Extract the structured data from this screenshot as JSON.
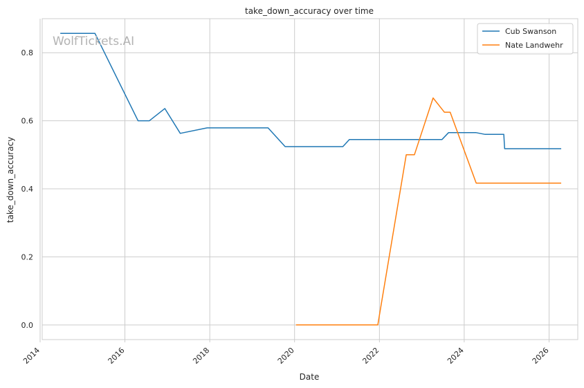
{
  "chart_data": {
    "type": "line",
    "title": "take_down_accuracy over time",
    "xlabel": "Date",
    "ylabel": "take_down_accuracy",
    "watermark": "WolfTickets.AI",
    "x_ticks": [
      "2014",
      "2016",
      "2018",
      "2020",
      "2022",
      "2024",
      "2026"
    ],
    "y_ticks": [
      "0.0",
      "0.2",
      "0.4",
      "0.6",
      "0.8"
    ],
    "xlim": [
      "2014-01-19",
      "2026-09-05"
    ],
    "ylim": [
      -0.043,
      0.9
    ],
    "grid": true,
    "legend_position": "top-right",
    "series": [
      {
        "name": "Cub Swanson",
        "color": "#1f77b4",
        "points": [
          [
            "2014-06-28",
            0.857
          ],
          [
            "2015-04-18",
            0.857
          ],
          [
            "2016-04-23",
            0.6
          ],
          [
            "2016-07-30",
            0.6
          ],
          [
            "2016-12-10",
            0.636
          ],
          [
            "2017-04-22",
            0.563
          ],
          [
            "2017-12-09",
            0.579
          ],
          [
            "2019-05-18",
            0.579
          ],
          [
            "2019-10-12",
            0.524
          ],
          [
            "2021-02-20",
            0.524
          ],
          [
            "2021-04-17",
            0.545
          ],
          [
            "2023-06-24",
            0.545
          ],
          [
            "2023-08-19",
            0.565
          ],
          [
            "2024-04-13",
            0.565
          ],
          [
            "2024-06-29",
            0.56
          ],
          [
            "2024-12-07",
            0.56
          ],
          [
            "2024-12-14",
            0.518
          ],
          [
            "2026-04-11",
            0.518
          ]
        ]
      },
      {
        "name": "Nate Landwehr",
        "color": "#ff7f0e",
        "points": [
          [
            "2020-01-18",
            0.0
          ],
          [
            "2021-12-18",
            0.0
          ],
          [
            "2022-08-20",
            0.5
          ],
          [
            "2022-10-29",
            0.5
          ],
          [
            "2023-04-08",
            0.667
          ],
          [
            "2023-07-15",
            0.625
          ],
          [
            "2023-09-02",
            0.625
          ],
          [
            "2024-04-13",
            0.417
          ],
          [
            "2026-04-11",
            0.417
          ]
        ]
      }
    ]
  }
}
